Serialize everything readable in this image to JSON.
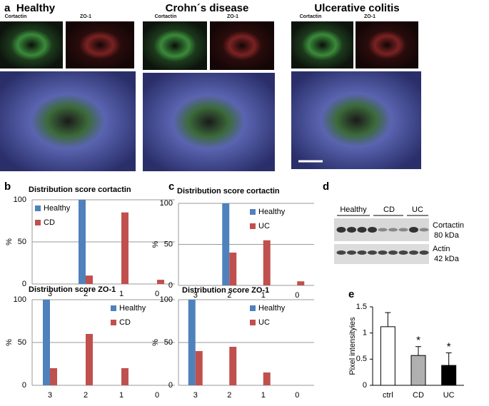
{
  "panel_labels": [
    "a",
    "b",
    "c",
    "d",
    "e"
  ],
  "images": [
    {
      "title": "Healthy",
      "channels": [
        "Cortactin",
        "ZO-1"
      ]
    },
    {
      "title": "Crohn´s disease",
      "channels": [
        "Cortactin",
        "ZO-1"
      ]
    },
    {
      "title": "Ulcerative colitis",
      "channels": [
        "Cortactin",
        "ZO-1"
      ]
    }
  ],
  "blot": {
    "groups": [
      "Healthy",
      "CD",
      "UC"
    ],
    "bands": [
      {
        "protein": "Cortactin",
        "size": "80 kDa"
      },
      {
        "protein": "Actin",
        "size": "42 kDa"
      }
    ]
  },
  "chart_data": [
    {
      "type": "bar",
      "title": "Distribution score cortactin",
      "ylabel": "%",
      "categories": [
        "3",
        "2",
        "1",
        "0"
      ],
      "series": [
        {
          "name": "Healthy",
          "color": "#4f81bd",
          "values": [
            0,
            100,
            0,
            0
          ]
        },
        {
          "name": "CD",
          "color": "#c0504d",
          "values": [
            0,
            10,
            85,
            5
          ]
        }
      ],
      "ylim": [
        0,
        100
      ],
      "yticks": [
        0,
        50,
        100
      ],
      "grid": true,
      "legend": "upper left"
    },
    {
      "type": "bar",
      "title": "Distribution score ZO-1",
      "ylabel": "%",
      "categories": [
        "3",
        "2",
        "1",
        "0"
      ],
      "series": [
        {
          "name": "Healthy",
          "color": "#4f81bd",
          "values": [
            100,
            0,
            0,
            0
          ]
        },
        {
          "name": "CD",
          "color": "#c0504d",
          "values": [
            20,
            60,
            20,
            0
          ]
        }
      ],
      "ylim": [
        0,
        100
      ],
      "yticks": [
        0,
        50,
        100
      ],
      "grid": true,
      "legend": "upper right"
    },
    {
      "type": "bar",
      "title": "Distribution score cortactin",
      "ylabel": "%",
      "categories": [
        "3",
        "2",
        "1",
        "0"
      ],
      "series": [
        {
          "name": "Healthy",
          "color": "#4f81bd",
          "values": [
            0,
            100,
            0,
            0
          ]
        },
        {
          "name": "UC",
          "color": "#c0504d",
          "values": [
            0,
            40,
            55,
            5
          ]
        }
      ],
      "ylim": [
        0,
        100
      ],
      "yticks": [
        0,
        50,
        100
      ],
      "grid": true,
      "legend": "upper right"
    },
    {
      "type": "bar",
      "title": "Distribution score ZO-1",
      "ylabel": "%",
      "categories": [
        "3",
        "2",
        "1",
        "0"
      ],
      "series": [
        {
          "name": "Healthy",
          "color": "#4f81bd",
          "values": [
            100,
            0,
            0,
            0
          ]
        },
        {
          "name": "UC",
          "color": "#c0504d",
          "values": [
            40,
            45,
            15,
            0
          ]
        }
      ],
      "ylim": [
        0,
        100
      ],
      "yticks": [
        0,
        50,
        100
      ],
      "grid": true,
      "legend": "upper right"
    },
    {
      "type": "errorbar",
      "ylabel": "Pixel intensityies",
      "categories": [
        "ctrl",
        "CD",
        "UC"
      ],
      "values": [
        1.12,
        0.57,
        0.38
      ],
      "errors": [
        0.27,
        0.17,
        0.24
      ],
      "colors": [
        "#ffffff",
        "#b0b0b0",
        "#000000"
      ],
      "ylim": [
        0,
        1.5
      ],
      "yticks": [
        0,
        0.5,
        1,
        1.5
      ],
      "grid": true,
      "annotations": [
        {
          "text": "*",
          "x": 1
        },
        {
          "text": "*",
          "x": 2
        }
      ]
    }
  ]
}
